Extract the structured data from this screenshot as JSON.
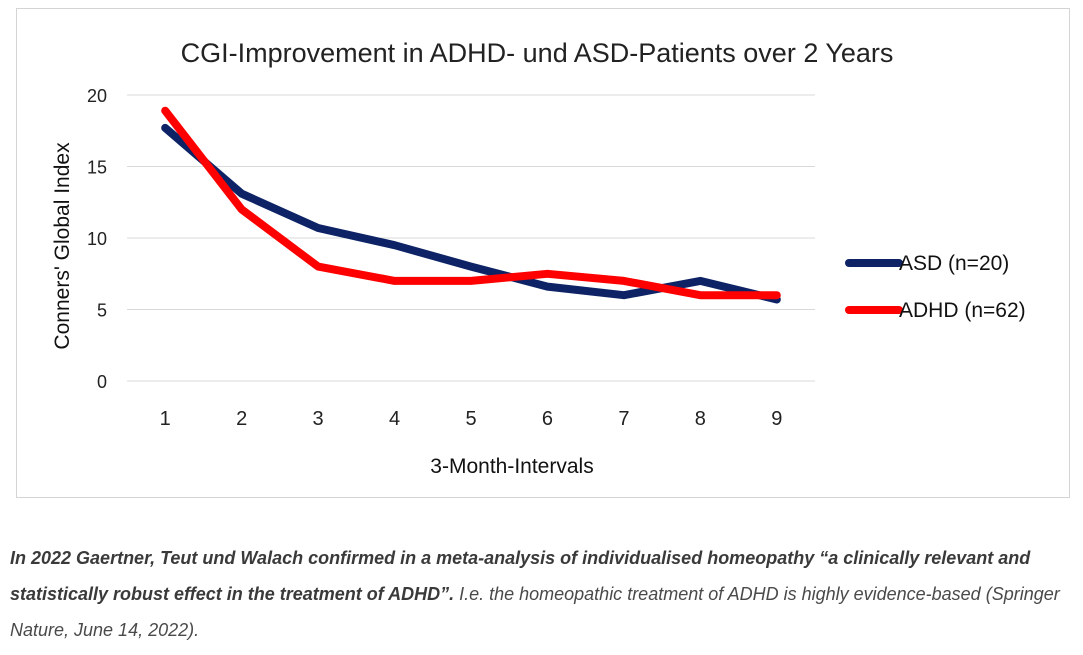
{
  "chart_data": {
    "type": "line",
    "title": "CGI-Improvement in ADHD- und ASD-Patients over 2 Years",
    "xlabel": "3-Month-Intervals",
    "ylabel": "Conners' Global Index",
    "categories": [
      "1",
      "2",
      "3",
      "4",
      "5",
      "6",
      "7",
      "8",
      "9"
    ],
    "yticks": [
      "0",
      "5",
      "10",
      "15",
      "20"
    ],
    "ylim": [
      0,
      20
    ],
    "grid": true,
    "legend_position": "right",
    "series": [
      {
        "name": "ASD (n=20)",
        "color": "#0d2366",
        "values": [
          17.7,
          13.1,
          10.7,
          9.5,
          8.0,
          6.6,
          6.0,
          7.0,
          5.7
        ]
      },
      {
        "name": "ADHD (n=62)",
        "color": "#ff0000",
        "values": [
          18.9,
          12.0,
          8.0,
          7.0,
          7.0,
          7.5,
          7.0,
          6.0,
          6.0
        ]
      }
    ]
  },
  "caption": {
    "bold": "In 2022 Gaertner, Teut und Walach confirmed in a meta-analysis of individualised homeopathy “a clinically relevant and statistically robust effect in the treatment of ADHD”.",
    "normal": " I.e. the homeopathic treatment of ADHD is highly evidence-based (Springer Nature, June 14, 2022)."
  }
}
